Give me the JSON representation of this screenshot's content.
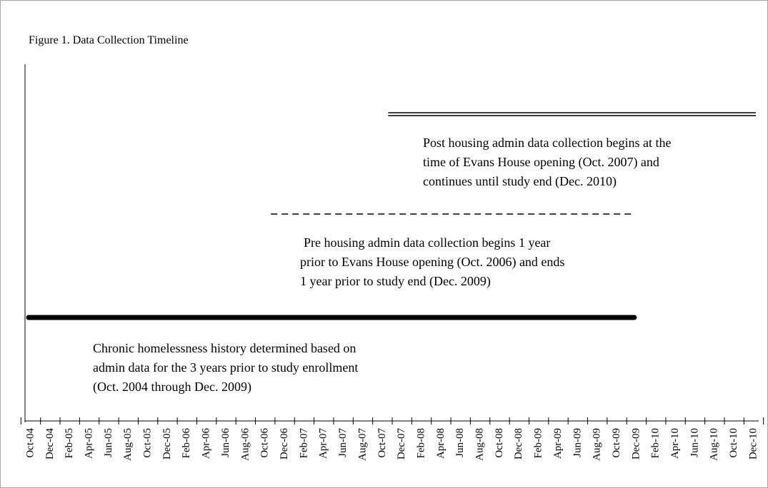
{
  "chart_data": {
    "type": "timeline",
    "title": "Figure 1. Data Collection Timeline",
    "categories": [
      "Oct-04",
      "Dec-04",
      "Feb-05",
      "Apr-05",
      "Jun-05",
      "Aug-05",
      "Oct-05",
      "Dec-05",
      "Feb-06",
      "Apr-06",
      "Jun-06",
      "Aug-06",
      "Oct-06",
      "Dec-06",
      "Feb-07",
      "Apr-07",
      "Jun-07",
      "Aug-07",
      "Oct-07",
      "Dec-07",
      "Feb-08",
      "Apr-08",
      "Jun-08",
      "Aug-08",
      "Oct-08",
      "Dec-08",
      "Feb-09",
      "Apr-09",
      "Jun-09",
      "Aug-09",
      "Oct-09",
      "Dec-09",
      "Feb-10",
      "Apr-10",
      "Jun-10",
      "Aug-10",
      "Oct-10",
      "Dec-10"
    ],
    "series": [
      {
        "start": "Oct-07",
        "end": "Dec-10",
        "style": "double",
        "color": "#000000",
        "label": [
          "Post housing admin data collection begins at the",
          "time of Evans House opening (Oct. 2007) and",
          "continues until study end (Dec. 2010)"
        ]
      },
      {
        "start": "Oct-06",
        "end": "Dec-09",
        "style": "dashed",
        "color": "#000000",
        "label": [
          "Pre housing admin data collection begins 1 year",
          "prior to Evans House opening (Oct. 2006) and ends",
          "1 year prior to study end (Dec. 2009)"
        ]
      },
      {
        "start": "Oct-04",
        "end": "Dec-09",
        "style": "thick",
        "color": "#000000",
        "label": [
          "Chronic homelessness history determined based on",
          "admin data for the 3 years prior to study enrollment",
          "(Oct. 2004 through Dec. 2009)"
        ]
      }
    ]
  }
}
